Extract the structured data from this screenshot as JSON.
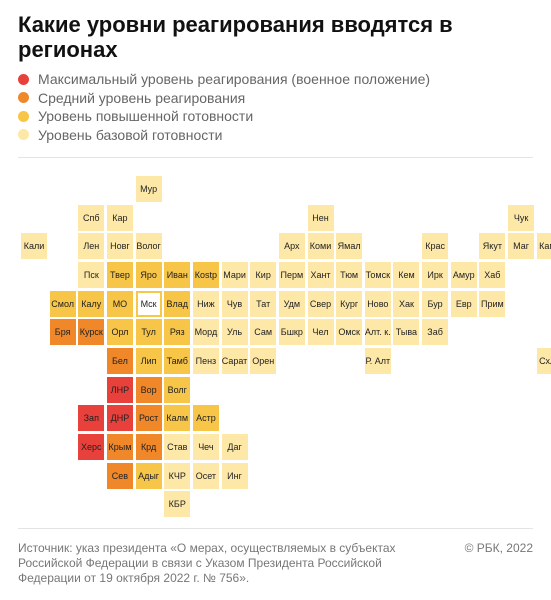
{
  "title": "Какие уровни реагирования вводятся в регионах",
  "legend": [
    {
      "label": "Максимальный уровень реагирования (военное положение)",
      "color": "#e8413c",
      "level": "max"
    },
    {
      "label": "Средний уровень реагирования",
      "color": "#f0882a",
      "level": "mid"
    },
    {
      "label": "Уровень повышенной готовности",
      "color": "#f7c548",
      "level": "high"
    },
    {
      "label": "Уровень базовой готовности",
      "color": "#fde8a8",
      "level": "base"
    }
  ],
  "regions": [
    {
      "name": "Мур",
      "row": 0,
      "col": 5,
      "level": "base"
    },
    {
      "name": "Спб",
      "row": 1,
      "col": 3,
      "level": "base"
    },
    {
      "name": "Кар",
      "row": 1,
      "col": 4,
      "level": "base"
    },
    {
      "name": "Нен",
      "row": 1,
      "col": 11,
      "level": "base"
    },
    {
      "name": "Чук",
      "row": 1,
      "col": 18,
      "level": "base"
    },
    {
      "name": "Кали",
      "row": 2,
      "col": 1,
      "level": "base"
    },
    {
      "name": "Лен",
      "row": 2,
      "col": 3,
      "level": "base"
    },
    {
      "name": "Новг",
      "row": 2,
      "col": 4,
      "level": "base"
    },
    {
      "name": "Волог",
      "row": 2,
      "col": 5,
      "level": "base"
    },
    {
      "name": "Арх",
      "row": 2,
      "col": 10,
      "level": "base"
    },
    {
      "name": "Коми",
      "row": 2,
      "col": 11,
      "level": "base"
    },
    {
      "name": "Ямал",
      "row": 2,
      "col": 12,
      "level": "base"
    },
    {
      "name": "Крас",
      "row": 2,
      "col": 15,
      "level": "base"
    },
    {
      "name": "Якут",
      "row": 2,
      "col": 17,
      "level": "base"
    },
    {
      "name": "Маг",
      "row": 2,
      "col": 18,
      "level": "base"
    },
    {
      "name": "Камч",
      "row": 2,
      "col": 19,
      "level": "base"
    },
    {
      "name": "Пск",
      "row": 3,
      "col": 3,
      "level": "base"
    },
    {
      "name": "Твер",
      "row": 3,
      "col": 4,
      "level": "high"
    },
    {
      "name": "Яро",
      "row": 3,
      "col": 5,
      "level": "high"
    },
    {
      "name": "Иван",
      "row": 3,
      "col": 6,
      "level": "high"
    },
    {
      "name": "Кostр",
      "row": 3,
      "col": 7,
      "level": "high"
    },
    {
      "name": "Мари",
      "row": 3,
      "col": 8,
      "level": "base"
    },
    {
      "name": "Кир",
      "row": 3,
      "col": 9,
      "level": "base"
    },
    {
      "name": "Перм",
      "row": 3,
      "col": 10,
      "level": "base"
    },
    {
      "name": "Хант",
      "row": 3,
      "col": 11,
      "level": "base"
    },
    {
      "name": "Тюм",
      "row": 3,
      "col": 12,
      "level": "base"
    },
    {
      "name": "Томск",
      "row": 3,
      "col": 13,
      "level": "base"
    },
    {
      "name": "Кем",
      "row": 3,
      "col": 14,
      "level": "base"
    },
    {
      "name": "Ирк",
      "row": 3,
      "col": 15,
      "level": "base"
    },
    {
      "name": "Амур",
      "row": 3,
      "col": 16,
      "level": "base"
    },
    {
      "name": "Хаб",
      "row": 3,
      "col": 17,
      "level": "base"
    },
    {
      "name": "Смол",
      "row": 4,
      "col": 2,
      "level": "high"
    },
    {
      "name": "Калу",
      "row": 4,
      "col": 3,
      "level": "high"
    },
    {
      "name": "МО",
      "row": 4,
      "col": 4,
      "level": "high"
    },
    {
      "name": "Мск",
      "row": 4,
      "col": 5,
      "level": "msk"
    },
    {
      "name": "Влад",
      "row": 4,
      "col": 6,
      "level": "high"
    },
    {
      "name": "Ниж",
      "row": 4,
      "col": 7,
      "level": "base"
    },
    {
      "name": "Чув",
      "row": 4,
      "col": 8,
      "level": "base"
    },
    {
      "name": "Тат",
      "row": 4,
      "col": 9,
      "level": "base"
    },
    {
      "name": "Удм",
      "row": 4,
      "col": 10,
      "level": "base"
    },
    {
      "name": "Свер",
      "row": 4,
      "col": 11,
      "level": "base"
    },
    {
      "name": "Кург",
      "row": 4,
      "col": 12,
      "level": "base"
    },
    {
      "name": "Ново",
      "row": 4,
      "col": 13,
      "level": "base"
    },
    {
      "name": "Хак",
      "row": 4,
      "col": 14,
      "level": "base"
    },
    {
      "name": "Бур",
      "row": 4,
      "col": 15,
      "level": "base"
    },
    {
      "name": "Евр",
      "row": 4,
      "col": 16,
      "level": "base"
    },
    {
      "name": "Прим",
      "row": 4,
      "col": 17,
      "level": "base"
    },
    {
      "name": "Бря",
      "row": 5,
      "col": 2,
      "level": "mid"
    },
    {
      "name": "Курск",
      "row": 5,
      "col": 3,
      "level": "mid"
    },
    {
      "name": "Орл",
      "row": 5,
      "col": 4,
      "level": "high"
    },
    {
      "name": "Тул",
      "row": 5,
      "col": 5,
      "level": "high"
    },
    {
      "name": "Ряз",
      "row": 5,
      "col": 6,
      "level": "high"
    },
    {
      "name": "Морд",
      "row": 5,
      "col": 7,
      "level": "base"
    },
    {
      "name": "Уль",
      "row": 5,
      "col": 8,
      "level": "base"
    },
    {
      "name": "Сам",
      "row": 5,
      "col": 9,
      "level": "base"
    },
    {
      "name": "Бшкр",
      "row": 5,
      "col": 10,
      "level": "base"
    },
    {
      "name": "Чел",
      "row": 5,
      "col": 11,
      "level": "base"
    },
    {
      "name": "Омск",
      "row": 5,
      "col": 12,
      "level": "base"
    },
    {
      "name": "Алт. к.",
      "row": 5,
      "col": 13,
      "level": "base"
    },
    {
      "name": "Тыва",
      "row": 5,
      "col": 14,
      "level": "base"
    },
    {
      "name": "Заб",
      "row": 5,
      "col": 15,
      "level": "base"
    },
    {
      "name": "Бел",
      "row": 6,
      "col": 4,
      "level": "mid"
    },
    {
      "name": "Лип",
      "row": 6,
      "col": 5,
      "level": "high"
    },
    {
      "name": "Тамб",
      "row": 6,
      "col": 6,
      "level": "high"
    },
    {
      "name": "Пенз",
      "row": 6,
      "col": 7,
      "level": "base"
    },
    {
      "name": "Сарат",
      "row": 6,
      "col": 8,
      "level": "base"
    },
    {
      "name": "Орен",
      "row": 6,
      "col": 9,
      "level": "base"
    },
    {
      "name": "Р. Алт",
      "row": 6,
      "col": 13,
      "level": "base"
    },
    {
      "name": "Схлн",
      "row": 6,
      "col": 19,
      "level": "base"
    },
    {
      "name": "ЛНР",
      "row": 7,
      "col": 4,
      "level": "max"
    },
    {
      "name": "Вор",
      "row": 7,
      "col": 5,
      "level": "mid"
    },
    {
      "name": "Волг",
      "row": 7,
      "col": 6,
      "level": "high"
    },
    {
      "name": "Зап",
      "row": 8,
      "col": 3,
      "level": "max"
    },
    {
      "name": "ДНР",
      "row": 8,
      "col": 4,
      "level": "max"
    },
    {
      "name": "Рост",
      "row": 8,
      "col": 5,
      "level": "mid"
    },
    {
      "name": "Калм",
      "row": 8,
      "col": 6,
      "level": "high"
    },
    {
      "name": "Астр",
      "row": 8,
      "col": 7,
      "level": "high"
    },
    {
      "name": "Херс",
      "row": 9,
      "col": 3,
      "level": "max"
    },
    {
      "name": "Крым",
      "row": 9,
      "col": 4,
      "level": "mid"
    },
    {
      "name": "Крд",
      "row": 9,
      "col": 5,
      "level": "mid"
    },
    {
      "name": "Став",
      "row": 9,
      "col": 6,
      "level": "base"
    },
    {
      "name": "Чеч",
      "row": 9,
      "col": 7,
      "level": "base"
    },
    {
      "name": "Даг",
      "row": 9,
      "col": 8,
      "level": "base"
    },
    {
      "name": "Сев",
      "row": 10,
      "col": 4,
      "level": "mid"
    },
    {
      "name": "Адыг",
      "row": 10,
      "col": 5,
      "level": "high"
    },
    {
      "name": "КЧР",
      "row": 10,
      "col": 6,
      "level": "base"
    },
    {
      "name": "Осет",
      "row": 10,
      "col": 7,
      "level": "base"
    },
    {
      "name": "Инг",
      "row": 10,
      "col": 8,
      "level": "base"
    },
    {
      "name": "КБР",
      "row": 11,
      "col": 6,
      "level": "base"
    }
  ],
  "level_colors": {
    "max": "#e8413c",
    "mid": "#f0882a",
    "high": "#f7c548",
    "base": "#fde8a8",
    "msk": "#ffffff"
  },
  "source": "Источник: указ президента «О мерах, осуществляемых в субъектах Российской Федерации в связи с Указом Президента Российской Федерации от 19 октября 2022 г. № 756».",
  "copyright": "© РБК, 2022"
}
